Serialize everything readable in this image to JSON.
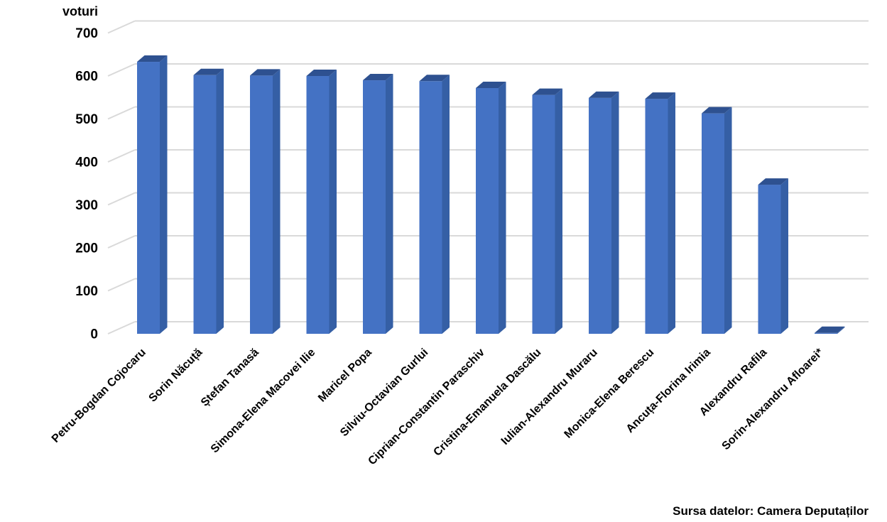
{
  "chart": {
    "axis_title": "voturi",
    "source": "Sursa datelor: Camera Deputaților"
  },
  "chart_data": {
    "type": "bar",
    "style": "3d-column",
    "title": "",
    "xlabel": "",
    "ylabel": "voturi",
    "categories": [
      "Petru-Bogdan Cojocaru",
      "Sorin Năcuță",
      "Ștefan Tanasă",
      "Simona-Elena Macovei Ilie",
      "Maricel Popa",
      "Silviu-Octavian Gurlui",
      "Ciprian-Constantin Paraschiv",
      "Cristina-Emanuela Dascălu",
      "Iulian-Alexandru Muraru",
      "Monica-Elena Berescu",
      "Ancuța-Florina Irimia",
      "Alexandru Rafila",
      "Sorin-Alexandru Afloarei*"
    ],
    "values": [
      633,
      602,
      601,
      600,
      590,
      588,
      572,
      556,
      549,
      547,
      513,
      347,
      2
    ],
    "ylim": [
      0,
      700
    ],
    "ytick_step": 100,
    "grid": true,
    "legend": false,
    "source": "Sursa datelor: Camera Deputaților",
    "bar_colors": {
      "front": "#4472C4",
      "side": "#355FA5",
      "top": "#2E5190"
    },
    "gridline_color": "#D9D9D9",
    "text_color": "#000000",
    "background_color": "#FFFFFF"
  }
}
